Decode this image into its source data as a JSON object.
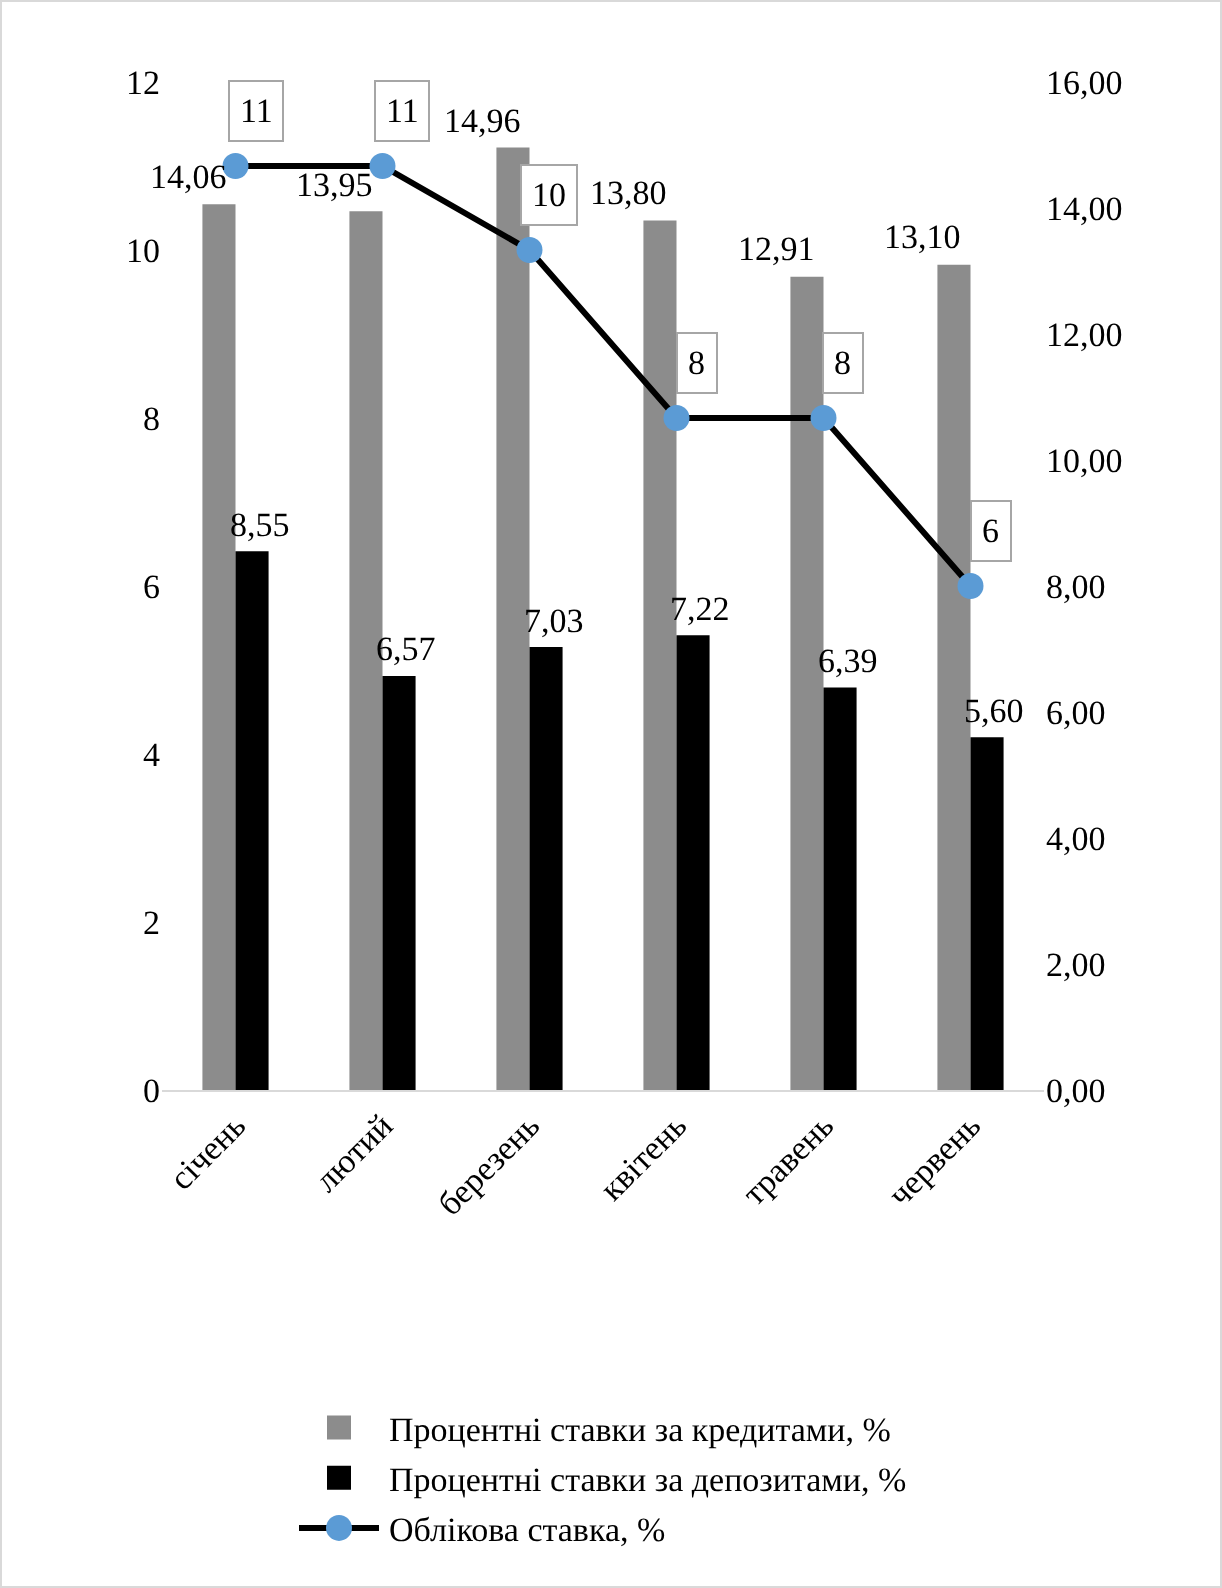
{
  "chart_data": {
    "type": "bar",
    "categories": [
      "січень",
      "лютий",
      "березень",
      "квітень",
      "травень",
      "червень"
    ],
    "series": [
      {
        "name": "Процентні ставки за кредитами, %",
        "color": "#8c8c8c",
        "axis": "y2",
        "values": [
          14.06,
          13.95,
          14.96,
          13.8,
          12.91,
          13.1
        ],
        "value_labels": [
          "14,06",
          "13,95",
          "14,96",
          "13,80",
          "12,91",
          "13,10"
        ]
      },
      {
        "name": "Процентні ставки за депозитами, %",
        "color": "#000000",
        "axis": "y2",
        "values": [
          8.55,
          6.57,
          7.03,
          7.22,
          6.39,
          5.6
        ],
        "value_labels": [
          "8,55",
          "6,57",
          "7,03",
          "7,22",
          "6,39",
          "5,60"
        ]
      },
      {
        "name": "Облікова ставка, %",
        "type": "line",
        "color": "#000000",
        "values": [
          11,
          11,
          10,
          8,
          8,
          6
        ],
        "value_labels": [
          "11",
          "11",
          "10",
          "8",
          "8",
          "6"
        ]
      }
    ],
    "ylim": [
      0,
      12
    ],
    "yticks": [
      0,
      2,
      4,
      6,
      8,
      10,
      12
    ],
    "y2lim": [
      0,
      16
    ],
    "y2ticks": [
      {
        "value": 0,
        "label": "0,00"
      },
      {
        "value": 2,
        "label": "2,00"
      },
      {
        "value": 4,
        "label": "4,00"
      },
      {
        "value": 6,
        "label": "6,00"
      },
      {
        "value": 8,
        "label": "8,00"
      },
      {
        "value": 10,
        "label": "10,00"
      },
      {
        "value": 12,
        "label": "12,00"
      },
      {
        "value": 14,
        "label": "14,00"
      },
      {
        "value": 16,
        "label": "16,00"
      }
    ],
    "grid": false,
    "legend": "bottom",
    "marker": "circle",
    "line_style": "solid"
  }
}
